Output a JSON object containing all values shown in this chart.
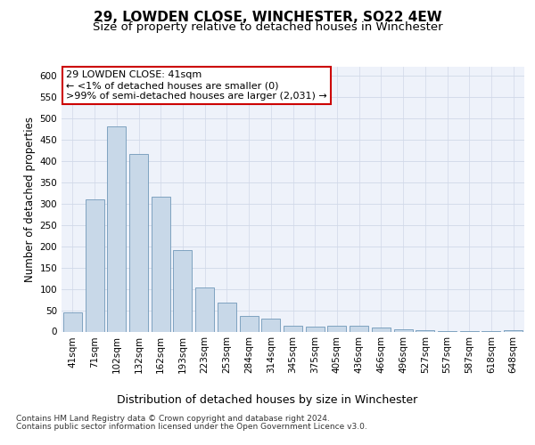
{
  "title": "29, LOWDEN CLOSE, WINCHESTER, SO22 4EW",
  "subtitle": "Size of property relative to detached houses in Winchester",
  "xlabel": "Distribution of detached houses by size in Winchester",
  "ylabel": "Number of detached properties",
  "categories": [
    "41sqm",
    "71sqm",
    "102sqm",
    "132sqm",
    "162sqm",
    "193sqm",
    "223sqm",
    "253sqm",
    "284sqm",
    "314sqm",
    "345sqm",
    "375sqm",
    "405sqm",
    "436sqm",
    "466sqm",
    "496sqm",
    "527sqm",
    "557sqm",
    "587sqm",
    "618sqm",
    "648sqm"
  ],
  "values": [
    45,
    310,
    480,
    415,
    315,
    190,
    103,
    68,
    37,
    31,
    13,
    11,
    13,
    13,
    9,
    6,
    4,
    1,
    1,
    1,
    4
  ],
  "bar_color": "#c8d8e8",
  "bar_edge_color": "#7098b8",
  "annotation_box_text": "29 LOWDEN CLOSE: 41sqm\n← <1% of detached houses are smaller (0)\n>99% of semi-detached houses are larger (2,031) →",
  "annotation_box_color": "#ffffff",
  "annotation_box_edge_color": "#cc0000",
  "ylim": [
    0,
    620
  ],
  "yticks": [
    0,
    50,
    100,
    150,
    200,
    250,
    300,
    350,
    400,
    450,
    500,
    550,
    600
  ],
  "grid_color": "#d0d8e8",
  "background_color": "#eef2fa",
  "footer_line1": "Contains HM Land Registry data © Crown copyright and database right 2024.",
  "footer_line2": "Contains public sector information licensed under the Open Government Licence v3.0.",
  "title_fontsize": 11,
  "subtitle_fontsize": 9.5,
  "xlabel_fontsize": 9,
  "ylabel_fontsize": 8.5,
  "tick_fontsize": 7.5,
  "annotation_fontsize": 8,
  "footer_fontsize": 6.5
}
